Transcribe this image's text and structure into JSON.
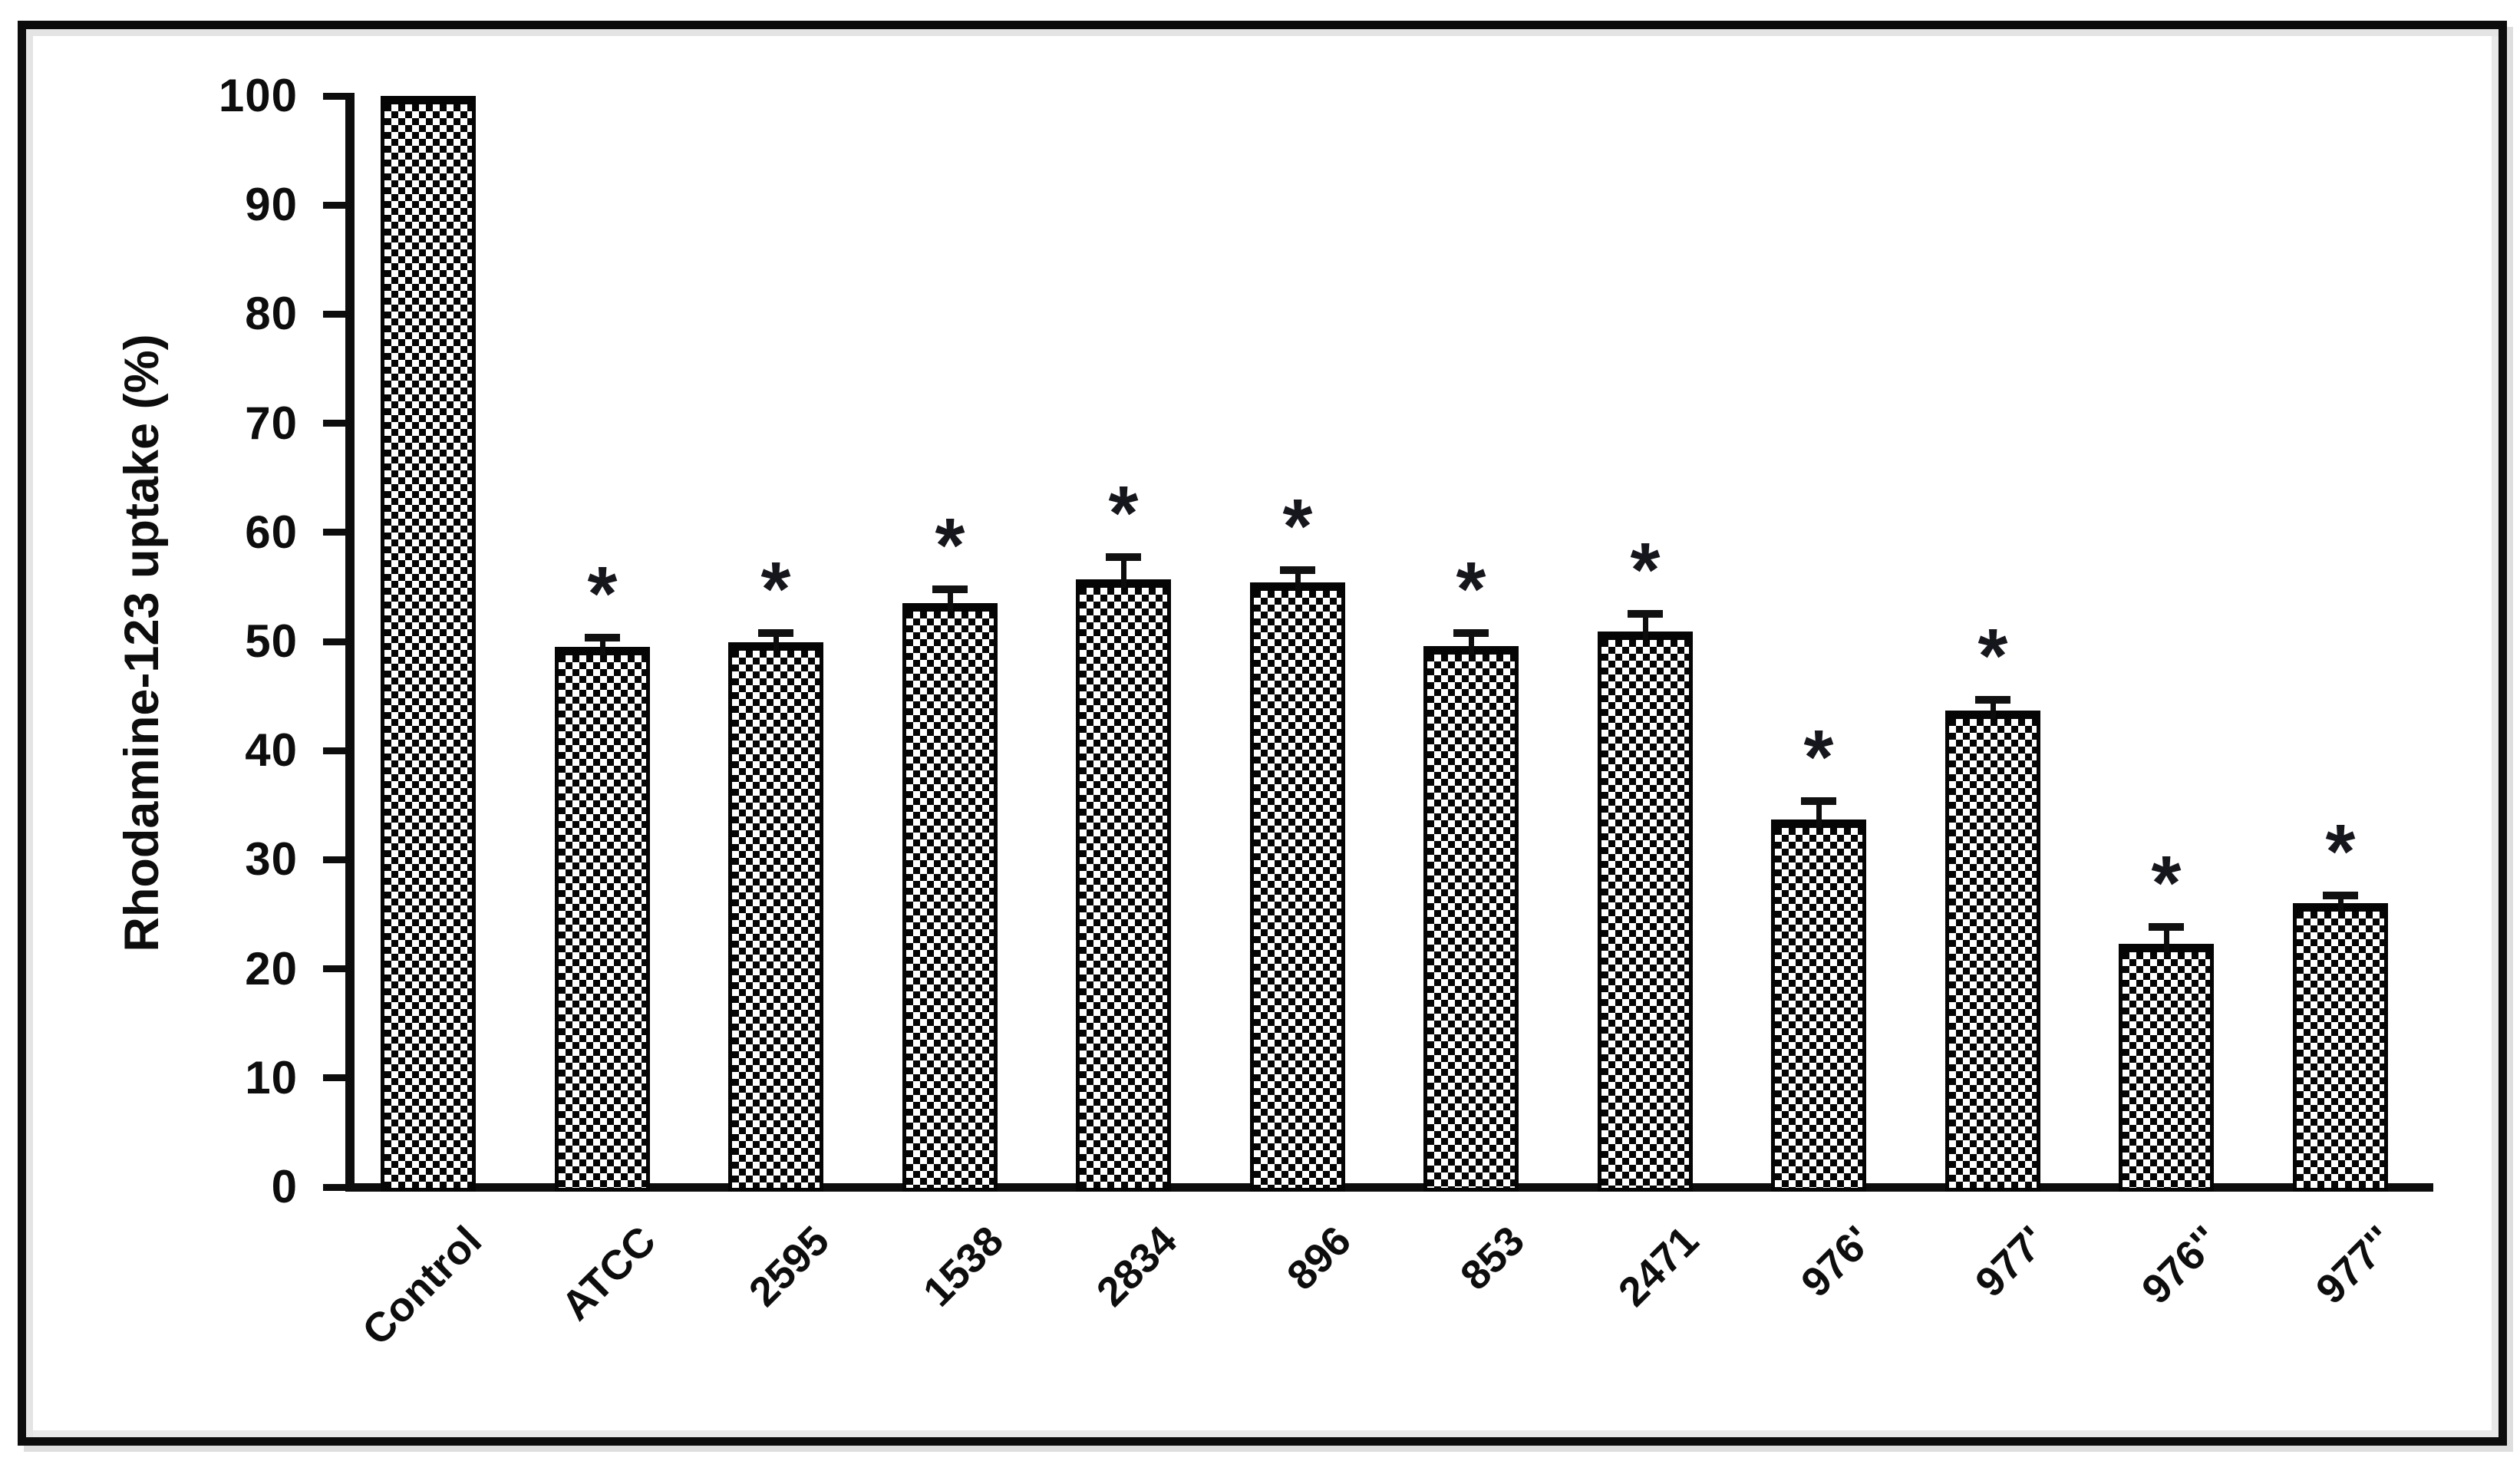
{
  "figure": {
    "background_color": "#ffffff",
    "border_color": "#0c0c0c",
    "inner_edge_color": "#e4e4e4",
    "ink_color": "#0d0d0d",
    "bar_fill_pattern": "black-white-checkerboard"
  },
  "chart_data": {
    "type": "bar",
    "title": "",
    "xlabel": "",
    "ylabel": "Rhodamine-123 uptake (%)",
    "ylim": [
      0,
      100
    ],
    "yticks": [
      0,
      10,
      20,
      30,
      40,
      50,
      60,
      70,
      80,
      90,
      100
    ],
    "grid": false,
    "legend": false,
    "categories": [
      "Control",
      "ATCC",
      "2595",
      "1538",
      "2834",
      "896",
      "853",
      "2471",
      "976'",
      "977'",
      "976''",
      "977''"
    ],
    "series": [
      {
        "name": "Rhodamine-123 uptake (%)",
        "values": [
          100,
          49.5,
          49.9,
          53.5,
          55.7,
          55.4,
          49.6,
          50.9,
          33.7,
          43.7,
          22.3,
          26.0
        ],
        "errors_upper": [
          0,
          0.5,
          0.5,
          0.9,
          1.7,
          0.8,
          0.8,
          1.3,
          1.3,
          0.6,
          1.2,
          0.4
        ],
        "significance": [
          "",
          "*",
          "*",
          "*",
          "*",
          "*",
          "*",
          "*",
          "*",
          "*",
          "*",
          "*"
        ]
      }
    ]
  }
}
